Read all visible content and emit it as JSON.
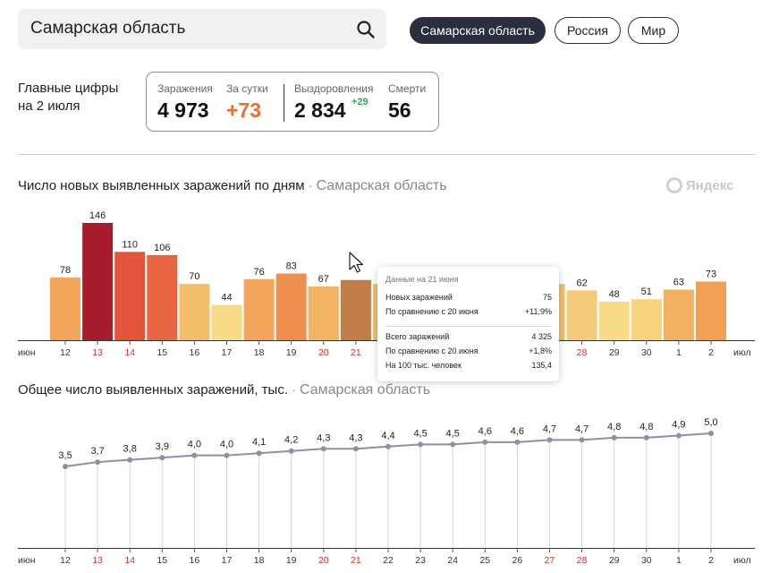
{
  "search": {
    "value": "Самарская область",
    "icon": "search-icon"
  },
  "filters": [
    {
      "label": "Самарская область",
      "active": true
    },
    {
      "label": "Россия",
      "active": false
    },
    {
      "label": "Мир",
      "active": false
    }
  ],
  "main_figures": {
    "label_line1": "Главные цифры",
    "label_line2": "на 2 июля",
    "infections_label": "Заражения",
    "infections_value": "4 973",
    "per_day_label": "За сутки",
    "per_day_value": "+73",
    "recovered_label": "Выздоровления",
    "recovered_value": "2 834",
    "recovered_delta": "+29",
    "deaths_label": "Смерти",
    "deaths_value": "56"
  },
  "daily_section": {
    "title": "Число новых выявленных заражений по дням",
    "region": "Самарская область",
    "brand": "Яндекс"
  },
  "total_section": {
    "title": "Общее число выявленных заражений, тыс.",
    "region": "Самарская область"
  },
  "tooltip": {
    "header": "Данные на 21 июня",
    "new_label": "Новых заражений",
    "new_value": "75",
    "cmp_label": "По сравнению с 20 июня",
    "cmp_value": "+11,9%",
    "total_label": "Всего заражений",
    "total_value": "4 325",
    "cmp2_label": "По сравнению с 20 июня",
    "cmp2_value": "+1,8%",
    "per100_label": "На 100 тыс. человек",
    "per100_value": "135,4"
  },
  "colors": {
    "weekend_day": "#d9302b",
    "line": "#8b90a8",
    "accent": "#ee6c2c"
  },
  "chart_data": [
    {
      "type": "bar",
      "categories": [
        "12",
        "13",
        "14",
        "15",
        "16",
        "17",
        "18",
        "19",
        "20",
        "21",
        "22",
        "23",
        "24",
        "25",
        "26",
        "27",
        "28",
        "29",
        "30",
        "1",
        "2"
      ],
      "weekend": [
        false,
        true,
        true,
        false,
        false,
        false,
        false,
        false,
        true,
        true,
        false,
        false,
        false,
        false,
        false,
        true,
        true,
        false,
        false,
        false,
        false
      ],
      "values": [
        78,
        146,
        110,
        106,
        70,
        44,
        76,
        83,
        67,
        75,
        null,
        null,
        null,
        null,
        null,
        null,
        62,
        48,
        51,
        63,
        73
      ],
      "labels": [
        "78",
        "146",
        "110",
        "106",
        "70",
        "44",
        "76",
        "83",
        "67",
        "",
        "",
        "",
        "",
        "",
        "",
        "",
        "62",
        "48",
        "51",
        "63",
        "73"
      ],
      "bar_colors": [
        "#f2a55b",
        "#a51d2d",
        "#e5543a",
        "#e96440",
        "#f4be68",
        "#f9da86",
        "#f2a55b",
        "#ef8e4e",
        "#f4b464",
        "#c17d45",
        "#f4be68",
        "#f4be68",
        "#f4be68",
        "#f4be68",
        "#f4be68",
        "#f4be68",
        "#f4cb7a",
        "#f9da86",
        "#f9d27e",
        "#f2b061",
        "#f2a055"
      ],
      "axis_start_label": "июн",
      "axis_end_label": "июл"
    },
    {
      "type": "line",
      "categories": [
        "12",
        "13",
        "14",
        "15",
        "16",
        "17",
        "18",
        "19",
        "20",
        "21",
        "22",
        "23",
        "24",
        "25",
        "26",
        "27",
        "28",
        "29",
        "30",
        "1",
        "2"
      ],
      "weekend": [
        false,
        true,
        true,
        false,
        false,
        false,
        false,
        false,
        true,
        true,
        false,
        false,
        false,
        false,
        false,
        true,
        true,
        false,
        false,
        false,
        false
      ],
      "values": [
        3.5,
        3.7,
        3.8,
        3.9,
        4.0,
        4.0,
        4.1,
        4.2,
        4.3,
        4.3,
        4.4,
        4.5,
        4.5,
        4.6,
        4.6,
        4.7,
        4.7,
        4.8,
        4.8,
        4.9,
        5.0
      ],
      "labels": [
        "3,5",
        "3,7",
        "3,8",
        "3,9",
        "4,0",
        "4,0",
        "4,1",
        "4,2",
        "4,3",
        "4,3",
        "4,4",
        "4,5",
        "4,5",
        "4,6",
        "4,6",
        "4,7",
        "4,7",
        "4,8",
        "4,8",
        "4,9",
        "5,0"
      ],
      "axis_start_label": "июн",
      "axis_end_label": "июл"
    }
  ]
}
